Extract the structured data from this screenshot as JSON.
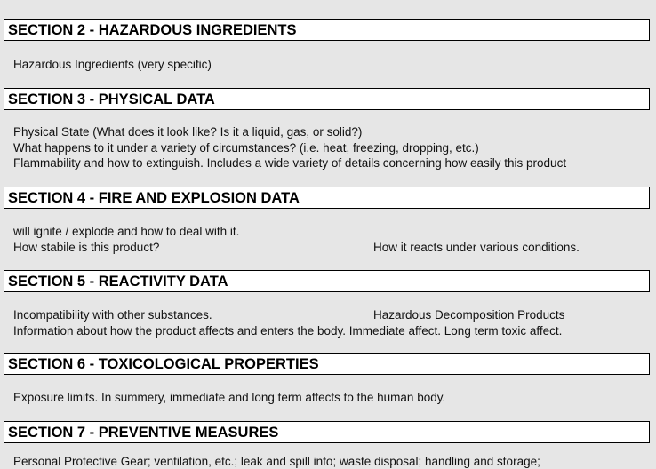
{
  "sections": [
    {
      "title": "SECTION 2 - HAZARDOUS INGREDIENTS",
      "lines": [
        [
          "Hazardous Ingredients (very specific)"
        ]
      ]
    },
    {
      "title": "SECTION 3 - PHYSICAL DATA",
      "lines": [
        [
          "Physical State (What does it look like?  Is it a liquid, gas, or solid?)"
        ],
        [
          "What happens to it under a variety of circumstances?  (i.e. heat, freezing, dropping, etc.)"
        ],
        [
          "Flammability and how to extinguish.  Includes a wide variety of details concerning how easily this product"
        ]
      ]
    },
    {
      "title": "SECTION 4 - FIRE AND EXPLOSION DATA",
      "lines": [
        [
          "will ignite / explode and how to deal with it."
        ],
        [
          "How stabile is this product?",
          "How it reacts under various conditions."
        ]
      ]
    },
    {
      "title": "SECTION 5 - REACTIVITY DATA",
      "lines": [
        [
          "Incompatibility with other substances.",
          "Hazardous Decomposition Products"
        ],
        [
          "Information about how the product affects and enters the body.  Immediate affect.  Long term toxic affect."
        ]
      ]
    },
    {
      "title": "SECTION 6 - TOXICOLOGICAL PROPERTIES",
      "lines": [
        [
          "Exposure limits.  In summery, immediate and long term affects to the human body."
        ]
      ]
    },
    {
      "title": "SECTION 7 - PREVENTIVE MEASURES",
      "lines": [
        [
          "Personal Protective Gear; ventilation, etc.; leak and spill info; waste disposal; handling and storage;"
        ]
      ]
    }
  ]
}
